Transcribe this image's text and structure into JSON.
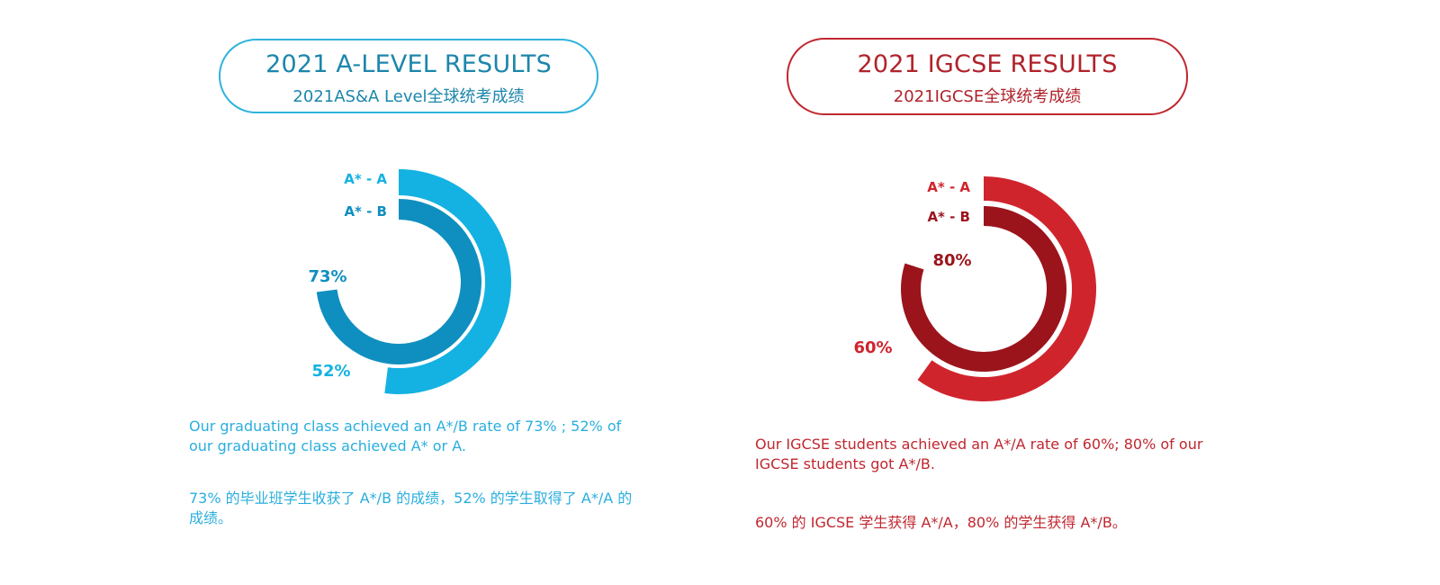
{
  "alevel": {
    "title": "2021 A-LEVEL RESULTS",
    "subtitle": "2021AS&A Level全球统考成绩",
    "description_en": "Our graduating class achieved an A*/B rate of 73% ; 52% of our graduating class achieved A* or A.",
    "description_cn": "73% 的毕业班学生收获了 A*/B 的成绩，52% 的学生取得了 A*/A 的成绩。"
  },
  "igcse": {
    "title": "2021 IGCSE RESULTS",
    "subtitle": "2021IGCSE全球统考成绩",
    "description_en": "Our IGCSE students achieved an A*/A rate of 60%; 80% of our IGCSE students got A*/B.",
    "description_cn": "60% 的 IGCSE 学生获得 A*/A，80% 的学生获得 A*/B。"
  },
  "chart_data": [
    {
      "type": "radial-bar",
      "series": [
        {
          "name": "A* - A",
          "value_label": "52%",
          "value": 52,
          "color": "#14b2e2"
        },
        {
          "name": "A* - B",
          "value_label": "73%",
          "value": 73,
          "color": "#0f8fc0"
        }
      ]
    },
    {
      "type": "radial-bar",
      "series": [
        {
          "name": "A* - A",
          "value_label": "60%",
          "value": 60,
          "color": "#d0242d"
        },
        {
          "name": "A* - B",
          "value_label": "80%",
          "value": 80,
          "color": "#9b141c"
        }
      ]
    }
  ]
}
